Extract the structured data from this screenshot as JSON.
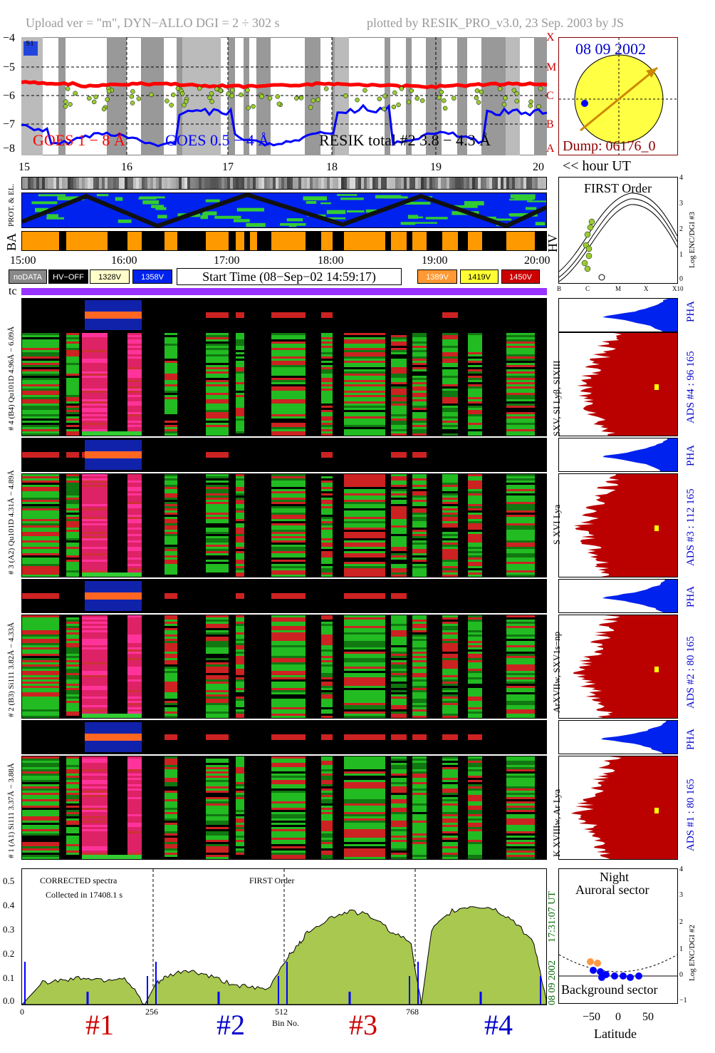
{
  "header": {
    "left": "Upload ver = \"m\", DYN−ALLO DGI =   2 ÷ 302 s",
    "right": "plotted by RESIK_PRO_v3.0, 23 Sep. 2003 by JS"
  },
  "goes": {
    "y_ticks": [
      "−4",
      "−5",
      "−6",
      "−7",
      "−8"
    ],
    "class_letters": [
      "X",
      "M",
      "C",
      "B",
      "A"
    ],
    "legend_goes18": "GOES 1 − 8 Å",
    "legend_goes054": "GOES 0.5 − 4 Å",
    "legend_resik": "RESIK total #2  3.8 − 4.3 Å",
    "corner_label": "S1",
    "hour_ticks": [
      "15",
      "16",
      "17",
      "18",
      "19",
      "20"
    ],
    "colors": {
      "goes18": "#ff0000",
      "goes054": "#0000ff",
      "resik": "#99cc33"
    }
  },
  "sun": {
    "date": "08 09 2002",
    "dump": "Dump: 06176_0"
  },
  "hour_label": "<< hour UT",
  "orbit": {
    "label_prot": "PROT. & EL.",
    "label_ba": "BA",
    "label_hv": "HV",
    "time_ticks": [
      "15:00",
      "16:00",
      "17:00",
      "18:00",
      "19:00",
      "20:00"
    ]
  },
  "legend": {
    "nodata": "noDATA",
    "hvoff": "HV−OFF",
    "v1328": "1328V",
    "v1358": "1358V",
    "start_time": "Start Time (08−Sep−02 14:59:17)",
    "v1389": "1389V",
    "v1419": "1419V",
    "v1450": "1450V"
  },
  "tc_label": "tc",
  "first_order": {
    "title": "FIRST Order",
    "y_ticks": [
      "4",
      "3",
      "2",
      "1",
      "0"
    ],
    "y_label": "Log ENC/DGI #3",
    "x_ticks": [
      "B",
      "C",
      "M",
      "X",
      "X10"
    ]
  },
  "channels": [
    {
      "pha_label": "# 4 (B4) Qu101D 4.96Å − 6.09Å",
      "lines": "SXV, SI Lyβ, SIXIII",
      "ads": "ADS #4 :  96 165"
    },
    {
      "pha_label": "# 3 (A2) Qu101D 4.31Å − 4.89Å",
      "lines": "S XVI Lya",
      "ads": "ADS #3 :  112 165"
    },
    {
      "pha_label": "# 2 (B3) Si111 3.82Å − 4.33Å",
      "lines": "ArXVIIw, SXV1s−np",
      "ads": "ADS #2 :  80 165"
    },
    {
      "pha_label": "# 1 (A1) Si111 3.37Å − 3.88Å",
      "lines": "K XVIIIw, Ar Lya",
      "ads": "ADS #1 :  80 165"
    }
  ],
  "pha_text": "PHA",
  "spectrum": {
    "note1": "CORRECTED spectra",
    "note2": "Collected in 17408.1 s",
    "note3": "FIRST Order",
    "side_time": "17:31:07 UT",
    "side_date": "08 09 2002",
    "xlabel": "Bin No.",
    "x_ticks": [
      "0",
      "256",
      "512",
      "768"
    ],
    "y_ticks": [
      "0.5",
      "0.4",
      "0.3",
      "0.2",
      "0.1",
      "0.0"
    ],
    "channel_labels": [
      "#1",
      "#2",
      "#3",
      "#4"
    ]
  },
  "latitude": {
    "title1": "Night",
    "title2": "Auroral sector",
    "bottom": "Background sector",
    "xlabel": "Latitude",
    "x_ticks": [
      "−50",
      "0",
      "50"
    ],
    "y_ticks": [
      "4",
      "3",
      "2",
      "1",
      "0",
      "−1"
    ],
    "y_label": "Log ENC/DGI #2"
  },
  "chart_data": {
    "type": "area",
    "title": "",
    "xlabel": "Bin No.",
    "ylabel": "",
    "xlim": [
      0,
      1024
    ],
    "ylim": [
      0,
      0.55
    ],
    "x_ticks": [
      0,
      256,
      512,
      768
    ],
    "series": [
      {
        "name": "corrected spectrum",
        "x": [
          0,
          40,
          80,
          120,
          160,
          200,
          240,
          260,
          280,
          320,
          360,
          400,
          440,
          480,
          520,
          540,
          560,
          600,
          640,
          680,
          720,
          760,
          780,
          800,
          840,
          880,
          920,
          960,
          1000,
          1024
        ],
        "values": [
          0.0,
          0.09,
          0.1,
          0.11,
          0.1,
          0.11,
          0.0,
          0.08,
          0.11,
          0.14,
          0.12,
          0.09,
          0.07,
          0.06,
          0.2,
          0.24,
          0.3,
          0.35,
          0.38,
          0.36,
          0.3,
          0.25,
          0.0,
          0.3,
          0.38,
          0.4,
          0.39,
          0.34,
          0.25,
          0.02
        ]
      }
    ]
  }
}
